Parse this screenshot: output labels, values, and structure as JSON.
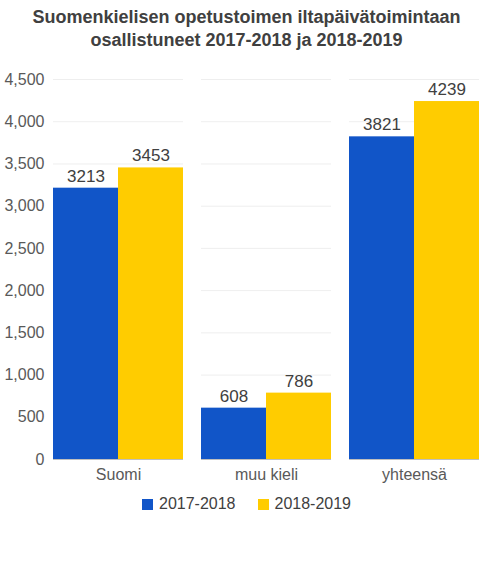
{
  "chart_data": {
    "type": "bar",
    "title": "Suomenkielisen opetustoimen iltapäivätoimintaan osallistuneet 2017-2018 ja 2018-2019",
    "categories": [
      "Suomi",
      "muu kieli",
      "yhteensä"
    ],
    "series": [
      {
        "name": "2017-2018",
        "color": "#1155c8",
        "values": [
          3213,
          608,
          3821
        ]
      },
      {
        "name": "2018-2019",
        "color": "#ffcc00",
        "values": [
          3453,
          786,
          4239
        ]
      }
    ],
    "ylim": [
      0,
      4500
    ],
    "yticks": [
      0,
      500,
      1000,
      1500,
      2000,
      2500,
      3000,
      3500,
      4000,
      4500
    ],
    "grid": true,
    "legend": "bottom",
    "data_labels": true
  }
}
